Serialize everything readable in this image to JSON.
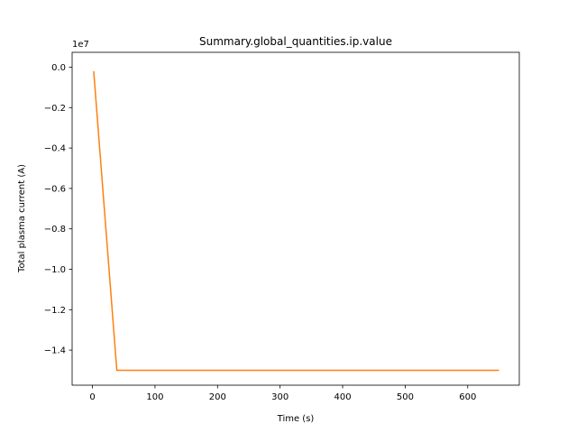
{
  "chart_data": {
    "type": "line",
    "title": "Summary.global_quantities.ip.value",
    "xlabel": "Time (s)",
    "ylabel": "Total plasma current (A)",
    "y_offset_label": "1e7",
    "xlim": [
      -32.5,
      682.5
    ],
    "ylim": [
      -1.5736,
      0.0736
    ],
    "x_ticks": [
      0,
      100,
      200,
      300,
      400,
      500,
      600
    ],
    "x_tick_labels": [
      "0",
      "100",
      "200",
      "300",
      "400",
      "500",
      "600"
    ],
    "y_ticks": [
      0.0,
      -0.2,
      -0.4,
      -0.6,
      -0.8,
      -1.0,
      -1.2,
      -1.4
    ],
    "y_tick_labels": [
      "0.0",
      "−0.2",
      "−0.4",
      "−0.6",
      "−0.8",
      "−1.0",
      "−1.2",
      "−1.4"
    ],
    "grid": false,
    "series": [
      {
        "color": "#ff7f0e",
        "x": [
          2,
          39,
          650
        ],
        "y": [
          -0.02,
          -1.5,
          -1.5
        ]
      }
    ]
  }
}
